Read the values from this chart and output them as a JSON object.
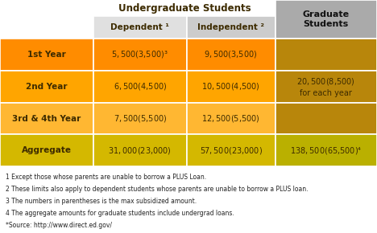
{
  "title_undergrad": "Undergraduate Students",
  "title_grad": "Graduate\nStudents",
  "col_headers": [
    "Dependent ¹",
    "Independent ²"
  ],
  "row_labels": [
    "1st Year",
    "2nd Year",
    "3rd & 4th Year",
    "Aggregate"
  ],
  "dependent_values": [
    "$5,500 ($3,500)³",
    "$6,500 ($4,500)",
    "$7,500 ($5,500)",
    "$31,000 ($23,000)"
  ],
  "independent_values": [
    "$9,500 ($3,500)",
    "$10,500 ($4,500)",
    "$12,500 ($5,500)",
    "$57,500 ($23,000)"
  ],
  "grad_values": [
    "",
    "$20,500 ($8,500)\nfor each year",
    "",
    "$138,500 ($65,500)⁴"
  ],
  "row_colors": [
    "#FF8C00",
    "#FFA500",
    "#FFB732",
    "#D4B800"
  ],
  "grad_row_colors_top3": "#B8860B",
  "grad_row_color_agg": "#BAB000",
  "header_bg_dep": "#E0E0E0",
  "header_bg_ind": "#CCCCCC",
  "header_bg_grad": "#AAAAAA",
  "text_dark": "#3D2B00",
  "footnotes": [
    "1 Except those whose parents are unable to borrow a PLUS Loan.",
    "2 These limits also apply to dependent students whose parents are unable to borrow a PLUS loan.",
    "3 The numbers in parentheses is the max subsidized amount.",
    "4 The aggregate amounts for graduate students include undergrad loans.",
    "*Source: http://www.direct.ed.gov/"
  ],
  "figsize": [
    4.68,
    2.9
  ],
  "dpi": 100
}
